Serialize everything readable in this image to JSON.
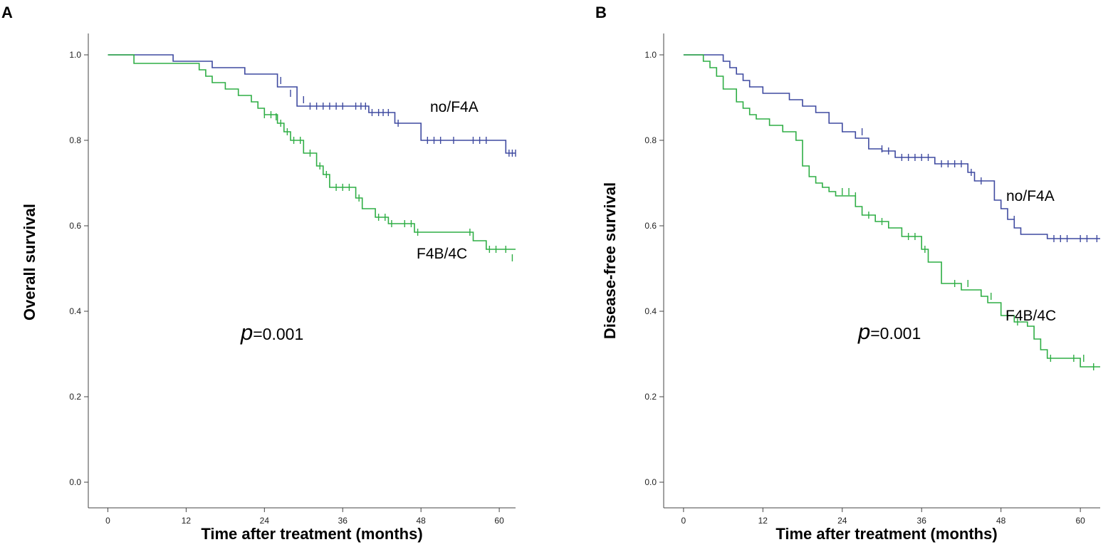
{
  "colors": {
    "no_f4a": "#3f4aa0",
    "f4b_4c": "#2fae45",
    "axis": "#444444"
  },
  "chart_data": [
    {
      "type": "line",
      "subtype": "kaplan-meier step",
      "panel_label": "A",
      "xlabel": "Time after treatment (months)",
      "ylabel": "Overall survival",
      "xticks": [
        0,
        12,
        24,
        36,
        48,
        60
      ],
      "yticks": [
        "0.0",
        "0.2",
        "0.4",
        "0.6",
        "0.8",
        "1.0"
      ],
      "xlim": [
        -3,
        62.5
      ],
      "ylim": [
        -0.06,
        1.05
      ],
      "annotation": {
        "p_symbol": "p",
        "p_text": "=0.001"
      },
      "series": [
        {
          "name": "no/F4A",
          "color_key": "no_f4a",
          "x": [
            0,
            10,
            10,
            16,
            16,
            21,
            21,
            26,
            26,
            29,
            29,
            40,
            40,
            44,
            44,
            48,
            48,
            61,
            61,
            62.5
          ],
          "y": [
            1,
            1,
            0.985,
            0.985,
            0.97,
            0.97,
            0.955,
            0.955,
            0.925,
            0.925,
            0.88,
            0.88,
            0.865,
            0.865,
            0.84,
            0.84,
            0.8,
            0.8,
            0.77,
            0.77
          ],
          "censored": [
            [
              26.5,
              0.94
            ],
            [
              28,
              0.91
            ],
            [
              30,
              0.895
            ],
            [
              31,
              0.88
            ],
            [
              32,
              0.88
            ],
            [
              33,
              0.88
            ],
            [
              34,
              0.88
            ],
            [
              35,
              0.88
            ],
            [
              36,
              0.88
            ],
            [
              38,
              0.88
            ],
            [
              38.8,
              0.88
            ],
            [
              39.5,
              0.88
            ],
            [
              40.5,
              0.865
            ],
            [
              41.5,
              0.865
            ],
            [
              42.2,
              0.865
            ],
            [
              43,
              0.865
            ],
            [
              44.5,
              0.84
            ],
            [
              49,
              0.8
            ],
            [
              50,
              0.8
            ],
            [
              51,
              0.8
            ],
            [
              53,
              0.8
            ],
            [
              56,
              0.8
            ],
            [
              57,
              0.8
            ],
            [
              58,
              0.8
            ],
            [
              61.5,
              0.77
            ],
            [
              62,
              0.77
            ],
            [
              62.5,
              0.77
            ]
          ]
        },
        {
          "name": "F4B/4C",
          "color_key": "f4b_4c",
          "x": [
            0,
            4,
            4,
            14,
            14,
            15,
            15,
            16,
            16,
            18,
            18,
            20,
            20,
            22,
            22,
            23,
            23,
            24,
            24,
            26,
            26,
            27,
            27,
            28,
            28,
            30,
            30,
            32,
            32,
            33,
            33,
            34,
            34,
            38,
            38,
            39,
            39,
            41,
            41,
            43,
            43,
            47,
            47,
            56,
            56,
            58,
            58,
            62.5
          ],
          "y": [
            1,
            1,
            0.98,
            0.98,
            0.965,
            0.965,
            0.95,
            0.95,
            0.935,
            0.935,
            0.92,
            0.92,
            0.905,
            0.905,
            0.89,
            0.89,
            0.875,
            0.875,
            0.86,
            0.86,
            0.84,
            0.84,
            0.82,
            0.82,
            0.8,
            0.8,
            0.77,
            0.77,
            0.74,
            0.74,
            0.72,
            0.72,
            0.69,
            0.69,
            0.665,
            0.665,
            0.64,
            0.64,
            0.62,
            0.62,
            0.605,
            0.605,
            0.585,
            0.585,
            0.565,
            0.565,
            0.545,
            0.545
          ],
          "censored": [
            [
              24,
              0.86
            ],
            [
              25,
              0.86
            ],
            [
              25.8,
              0.855
            ],
            [
              26.5,
              0.84
            ],
            [
              27.5,
              0.82
            ],
            [
              28.5,
              0.8
            ],
            [
              29.5,
              0.8
            ],
            [
              31,
              0.77
            ],
            [
              32.5,
              0.74
            ],
            [
              33.5,
              0.72
            ],
            [
              35,
              0.69
            ],
            [
              36,
              0.69
            ],
            [
              37,
              0.69
            ],
            [
              38.5,
              0.665
            ],
            [
              41.5,
              0.62
            ],
            [
              42.5,
              0.62
            ],
            [
              43.5,
              0.605
            ],
            [
              45.5,
              0.605
            ],
            [
              46.5,
              0.605
            ],
            [
              47.5,
              0.585
            ],
            [
              55.5,
              0.585
            ],
            [
              58.5,
              0.545
            ],
            [
              59.5,
              0.545
            ],
            [
              61,
              0.545
            ],
            [
              62,
              0.525
            ]
          ]
        }
      ]
    },
    {
      "type": "line",
      "subtype": "kaplan-meier step",
      "panel_label": "B",
      "xlabel": "Time after treatment (months)",
      "ylabel": "Disease-free survival",
      "xticks": [
        0,
        12,
        24,
        36,
        48,
        60
      ],
      "yticks": [
        "0.0",
        "0.2",
        "0.4",
        "0.6",
        "0.8",
        "1.0"
      ],
      "xlim": [
        -3,
        63
      ],
      "ylim": [
        -0.06,
        1.05
      ],
      "annotation": {
        "p_symbol": "p",
        "p_text": "=0.001"
      },
      "series": [
        {
          "name": "no/F4A",
          "color_key": "no_f4a",
          "x": [
            0,
            6,
            6,
            7,
            7,
            8,
            8,
            9,
            9,
            10,
            10,
            12,
            12,
            16,
            16,
            18,
            18,
            20,
            20,
            22,
            22,
            24,
            24,
            26,
            26,
            28,
            28,
            30,
            30,
            32,
            32,
            38,
            38,
            43,
            43,
            44,
            44,
            47,
            47,
            48,
            48,
            49,
            49,
            50,
            50,
            51,
            51,
            55,
            55,
            63
          ],
          "y": [
            1,
            1,
            0.985,
            0.985,
            0.97,
            0.97,
            0.955,
            0.955,
            0.94,
            0.94,
            0.925,
            0.925,
            0.91,
            0.91,
            0.895,
            0.895,
            0.88,
            0.88,
            0.865,
            0.865,
            0.84,
            0.84,
            0.82,
            0.82,
            0.805,
            0.805,
            0.78,
            0.78,
            0.775,
            0.775,
            0.76,
            0.76,
            0.745,
            0.745,
            0.725,
            0.725,
            0.705,
            0.705,
            0.66,
            0.66,
            0.64,
            0.64,
            0.615,
            0.615,
            0.595,
            0.595,
            0.58,
            0.58,
            0.57,
            0.57
          ],
          "censored": [
            [
              27,
              0.82
            ],
            [
              30,
              0.78
            ],
            [
              31,
              0.775
            ],
            [
              33,
              0.76
            ],
            [
              34,
              0.76
            ],
            [
              35,
              0.76
            ],
            [
              36,
              0.76
            ],
            [
              37,
              0.76
            ],
            [
              39,
              0.745
            ],
            [
              40,
              0.745
            ],
            [
              41,
              0.745
            ],
            [
              42,
              0.745
            ],
            [
              43.5,
              0.725
            ],
            [
              45,
              0.705
            ],
            [
              50,
              0.615
            ],
            [
              56,
              0.57
            ],
            [
              57,
              0.57
            ],
            [
              58,
              0.57
            ],
            [
              60,
              0.57
            ],
            [
              61,
              0.57
            ],
            [
              62.5,
              0.57
            ]
          ]
        },
        {
          "name": "F4B/4C",
          "color_key": "f4b_4c",
          "x": [
            0,
            3,
            3,
            4,
            4,
            5,
            5,
            6,
            6,
            8,
            8,
            9,
            9,
            10,
            10,
            11,
            11,
            13,
            13,
            15,
            15,
            17,
            17,
            18,
            18,
            19,
            19,
            20,
            20,
            21,
            21,
            22,
            22,
            23,
            23,
            26,
            26,
            27,
            27,
            29,
            29,
            31,
            31,
            33,
            33,
            36,
            36,
            37,
            37,
            39,
            39,
            42,
            42,
            45,
            45,
            46,
            46,
            48,
            48,
            50,
            50,
            52,
            52,
            53,
            53,
            54,
            54,
            55,
            55,
            60,
            60,
            63
          ],
          "y": [
            1,
            1,
            0.985,
            0.985,
            0.97,
            0.97,
            0.95,
            0.95,
            0.92,
            0.92,
            0.89,
            0.89,
            0.875,
            0.875,
            0.86,
            0.86,
            0.85,
            0.85,
            0.835,
            0.835,
            0.82,
            0.82,
            0.8,
            0.8,
            0.74,
            0.74,
            0.715,
            0.715,
            0.7,
            0.7,
            0.69,
            0.69,
            0.68,
            0.68,
            0.67,
            0.67,
            0.645,
            0.645,
            0.625,
            0.625,
            0.61,
            0.61,
            0.595,
            0.595,
            0.575,
            0.575,
            0.545,
            0.545,
            0.515,
            0.515,
            0.465,
            0.465,
            0.45,
            0.45,
            0.435,
            0.435,
            0.42,
            0.42,
            0.39,
            0.39,
            0.375,
            0.375,
            0.365,
            0.365,
            0.335,
            0.335,
            0.31,
            0.31,
            0.29,
            0.29,
            0.27,
            0.27
          ],
          "censored": [
            [
              24,
              0.68
            ],
            [
              25,
              0.68
            ],
            [
              26,
              0.67
            ],
            [
              28,
              0.625
            ],
            [
              30,
              0.61
            ],
            [
              34,
              0.575
            ],
            [
              35,
              0.575
            ],
            [
              36.5,
              0.545
            ],
            [
              41,
              0.465
            ],
            [
              43,
              0.465
            ],
            [
              46.5,
              0.435
            ],
            [
              49,
              0.39
            ],
            [
              50.5,
              0.375
            ],
            [
              55.5,
              0.29
            ],
            [
              59,
              0.29
            ],
            [
              60.5,
              0.29
            ],
            [
              62,
              0.27
            ]
          ]
        }
      ]
    }
  ]
}
